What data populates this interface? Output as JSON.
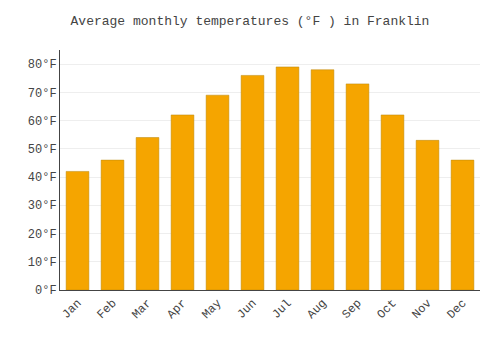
{
  "chart_data": {
    "type": "bar",
    "title": "Average monthly temperatures (°F ) in Franklin",
    "categories": [
      "Jan",
      "Feb",
      "Mar",
      "Apr",
      "May",
      "Jun",
      "Jul",
      "Aug",
      "Sep",
      "Oct",
      "Nov",
      "Dec"
    ],
    "values": [
      42,
      46,
      54,
      62,
      69,
      76,
      79,
      78,
      73,
      62,
      53,
      46
    ],
    "color": "#F5A500",
    "ylim": [
      0,
      85
    ],
    "yticks": [
      {
        "value": 0,
        "label": "0°F"
      },
      {
        "value": 10,
        "label": "10°F"
      },
      {
        "value": 20,
        "label": "20°F"
      },
      {
        "value": 30,
        "label": "30°F"
      },
      {
        "value": 40,
        "label": "40°F"
      },
      {
        "value": 50,
        "label": "50°F"
      },
      {
        "value": 60,
        "label": "60°F"
      },
      {
        "value": 70,
        "label": "70°F"
      },
      {
        "value": 80,
        "label": "80°F"
      }
    ],
    "grid": true
  }
}
